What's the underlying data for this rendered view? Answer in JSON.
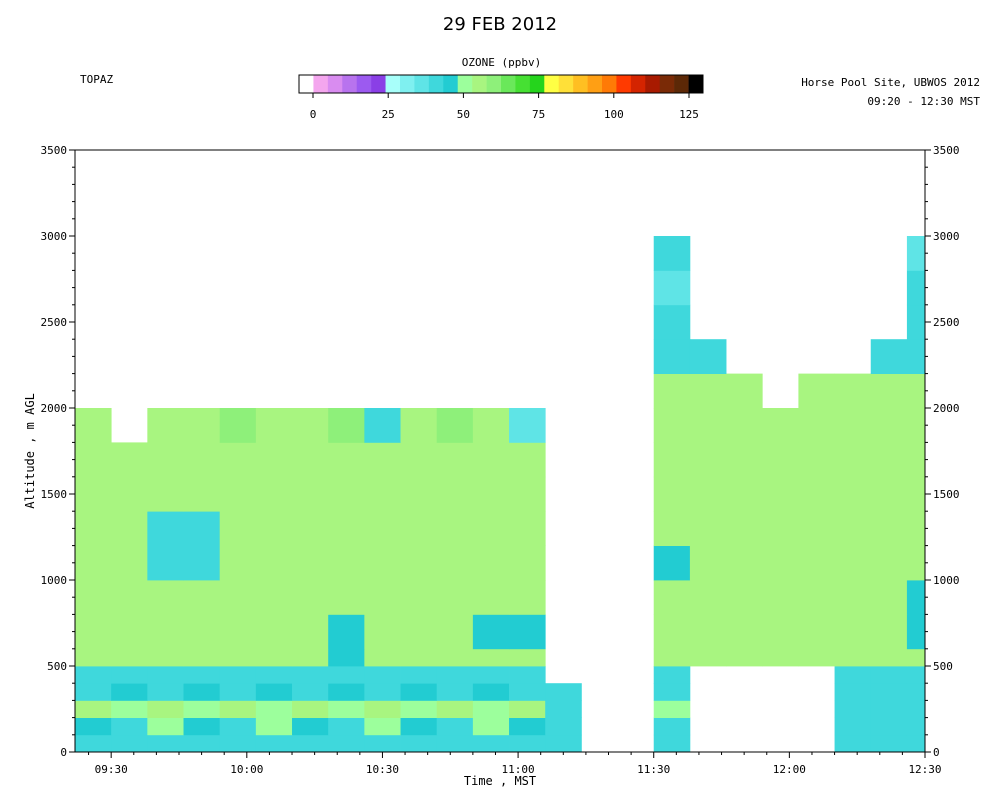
{
  "title": "29 FEB 2012",
  "left_label": "TOPAZ",
  "right_label_line1": "Horse Pool Site, UBWOS 2012",
  "right_label_line2": "09:20 - 12:30 MST",
  "colorbar": {
    "title": "OZONE (ppbv)",
    "ticks": [
      0,
      25,
      50,
      75,
      100,
      125
    ],
    "min": 0,
    "max": 130,
    "colors": [
      "#ffffff",
      "#f4a6ee",
      "#d98cf0",
      "#b873ee",
      "#9c5af0",
      "#8a3fe6",
      "#a8fffa",
      "#7ff0f0",
      "#5fe4e6",
      "#3fd8dc",
      "#22ccd2",
      "#9cff9c",
      "#a8f580",
      "#8ef07a",
      "#6ae85a",
      "#46e033",
      "#25d41c",
      "#ffff44",
      "#ffe038",
      "#ffbf22",
      "#ff9f14",
      "#ff7a06",
      "#ff3a00",
      "#d42400",
      "#a81a00",
      "#7a2a06",
      "#5c2806",
      "#000000"
    ]
  },
  "chart_data": {
    "type": "heatmap",
    "title": "29 FEB 2012",
    "xlabel": "Time , MST",
    "ylabel": "Altitude , m AGL",
    "x_tick_labels": [
      "09:30",
      "10:00",
      "10:30",
      "11:00",
      "11:30",
      "12:00",
      "12:30"
    ],
    "x_tick_values_min": [
      570,
      600,
      630,
      660,
      690,
      720,
      750
    ],
    "y_ticks": [
      0,
      500,
      1000,
      1500,
      2000,
      2500,
      3000,
      3500
    ],
    "xlim_min": [
      562,
      750
    ],
    "ylim": [
      0,
      3500
    ],
    "unit": "ppbv",
    "time_bins_min": [
      562,
      570,
      578,
      586,
      594,
      602,
      610,
      618,
      626,
      634,
      642,
      650,
      658,
      666,
      674,
      682,
      690,
      698,
      706,
      714,
      722,
      730,
      738,
      746
    ],
    "altitude_bins_m": [
      0,
      100,
      200,
      300,
      400,
      500,
      600,
      800,
      1000,
      1200,
      1400,
      1600,
      1800,
      2000,
      2200,
      2400,
      2600,
      2800,
      3000
    ],
    "values_ppbv": [
      [
        44,
        44,
        44,
        44,
        44,
        44,
        44,
        44,
        44,
        44,
        44,
        44,
        44,
        44,
        null,
        null,
        44,
        null,
        null,
        null,
        null,
        44,
        44,
        44
      ],
      [
        48,
        46,
        52,
        48,
        46,
        52,
        48,
        46,
        52,
        48,
        46,
        52,
        48,
        46,
        null,
        null,
        44,
        null,
        null,
        null,
        null,
        44,
        44,
        44
      ],
      [
        56,
        52,
        56,
        52,
        56,
        52,
        56,
        52,
        56,
        52,
        56,
        52,
        56,
        46,
        null,
        null,
        52,
        null,
        null,
        null,
        null,
        44,
        46,
        44
      ],
      [
        46,
        50,
        46,
        50,
        46,
        50,
        46,
        50,
        46,
        50,
        46,
        50,
        46,
        44,
        null,
        null,
        46,
        null,
        null,
        null,
        null,
        46,
        44,
        46
      ],
      [
        44,
        46,
        44,
        46,
        44,
        46,
        44,
        46,
        44,
        46,
        44,
        46,
        44,
        null,
        null,
        null,
        44,
        null,
        null,
        null,
        null,
        44,
        46,
        44
      ],
      [
        56,
        56,
        56,
        56,
        56,
        56,
        56,
        48,
        56,
        56,
        56,
        56,
        56,
        null,
        null,
        null,
        56,
        56,
        56,
        56,
        56,
        56,
        56,
        56
      ],
      [
        56,
        56,
        56,
        56,
        56,
        56,
        56,
        48,
        56,
        56,
        56,
        48,
        48,
        null,
        null,
        null,
        56,
        56,
        56,
        56,
        56,
        56,
        56,
        48
      ],
      [
        56,
        56,
        56,
        56,
        56,
        56,
        56,
        56,
        56,
        56,
        56,
        56,
        56,
        null,
        null,
        null,
        56,
        56,
        56,
        56,
        56,
        56,
        56,
        48
      ],
      [
        56,
        56,
        46,
        46,
        56,
        56,
        56,
        56,
        56,
        56,
        56,
        56,
        56,
        null,
        null,
        null,
        48,
        56,
        56,
        56,
        56,
        56,
        56,
        56
      ],
      [
        56,
        56,
        46,
        46,
        56,
        56,
        56,
        56,
        56,
        56,
        56,
        56,
        56,
        null,
        null,
        null,
        56,
        56,
        56,
        56,
        56,
        56,
        56,
        56
      ],
      [
        56,
        56,
        56,
        56,
        56,
        56,
        56,
        56,
        56,
        56,
        56,
        56,
        56,
        null,
        null,
        null,
        56,
        56,
        56,
        56,
        56,
        56,
        56,
        56
      ],
      [
        56,
        56,
        56,
        56,
        56,
        56,
        56,
        56,
        56,
        56,
        56,
        56,
        56,
        null,
        null,
        null,
        56,
        56,
        56,
        56,
        56,
        56,
        56,
        56
      ],
      [
        60,
        null,
        60,
        60,
        62,
        60,
        60,
        62,
        44,
        60,
        62,
        60,
        38,
        null,
        null,
        null,
        56,
        56,
        56,
        56,
        56,
        56,
        56,
        56
      ],
      [
        null,
        null,
        null,
        null,
        null,
        null,
        null,
        null,
        null,
        null,
        null,
        null,
        null,
        null,
        null,
        null,
        56,
        56,
        56,
        null,
        56,
        56,
        56,
        56
      ],
      [
        null,
        null,
        null,
        null,
        null,
        null,
        null,
        null,
        null,
        null,
        null,
        null,
        null,
        null,
        null,
        null,
        44,
        44,
        null,
        null,
        null,
        null,
        44,
        44
      ],
      [
        null,
        null,
        null,
        null,
        null,
        null,
        null,
        null,
        null,
        null,
        null,
        null,
        null,
        null,
        null,
        null,
        44,
        null,
        null,
        null,
        null,
        null,
        null,
        44
      ],
      [
        null,
        null,
        null,
        null,
        null,
        null,
        null,
        null,
        null,
        null,
        null,
        null,
        null,
        null,
        null,
        null,
        40,
        null,
        null,
        null,
        null,
        null,
        null,
        44
      ],
      [
        null,
        null,
        null,
        null,
        null,
        null,
        null,
        null,
        null,
        null,
        null,
        null,
        null,
        null,
        null,
        null,
        44,
        null,
        null,
        null,
        null,
        null,
        null,
        40
      ],
      [
        null,
        null,
        null,
        null,
        null,
        null,
        null,
        null,
        null,
        null,
        null,
        null,
        null,
        null,
        null,
        null,
        null,
        null,
        null,
        null,
        null,
        null,
        null,
        null
      ]
    ]
  }
}
